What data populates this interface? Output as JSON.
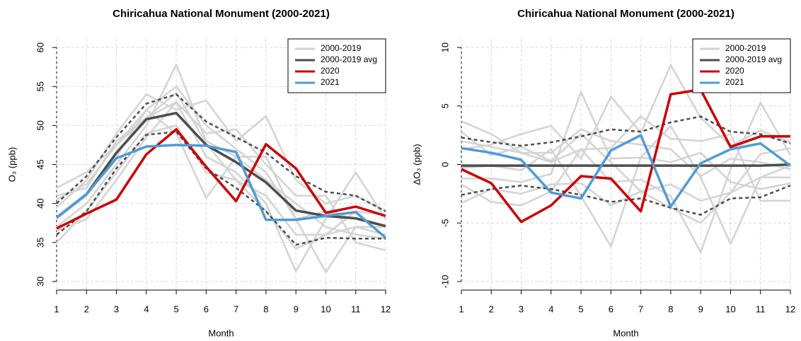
{
  "chart_data": [
    {
      "type": "line",
      "title": "Chiricahua National Monument (2000-2021)",
      "xlabel": "Month",
      "ylabel": "O₃ (ppb)",
      "x": [
        1,
        2,
        3,
        4,
        5,
        6,
        7,
        8,
        9,
        10,
        11,
        12
      ],
      "xlim": [
        1,
        12
      ],
      "xticks": [
        1,
        2,
        3,
        4,
        5,
        6,
        7,
        8,
        9,
        10,
        11,
        12
      ],
      "ylim": [
        28.9,
        61.1
      ],
      "yticks": [
        30,
        35,
        40,
        45,
        50,
        55,
        60
      ],
      "grid": true,
      "legend": "topright",
      "series": [
        {
          "name": "2000-2019",
          "color": "#d3d3d3",
          "lines": [
            [
              40.5,
              42.5,
              47.5,
              52,
              55,
              50,
              47,
              44,
              38,
              39,
              38,
              37
            ],
            [
              37,
              40,
              45,
              50,
              57.8,
              48,
              46,
              43,
              40,
              37,
              36,
              35.5
            ],
            [
              39.5,
              43,
              49,
              54,
              52,
              53.2,
              48,
              51.2,
              43,
              40,
              41,
              39
            ],
            [
              35,
              39,
              44,
              49,
              50,
              44,
              43,
              41,
              36,
              36,
              37,
              37
            ],
            [
              42,
              44,
              47.5,
              51,
              53,
              46,
              44,
              40,
              31.3,
              38,
              44,
              38
            ],
            [
              38,
              41,
              46,
              52,
              49,
              40.7,
              46,
              46,
              38,
              31.2,
              37,
              36
            ],
            [
              36.5,
              38,
              43,
              48.5,
              53,
              49,
              49.5,
              45,
              41,
              41,
              35,
              34
            ],
            [
              41,
              42,
              48,
              51,
              54.2,
              47.7,
              43,
              39,
              34.2,
              36,
              39,
              38.5
            ]
          ]
        },
        {
          "name": "2000-2019 avg",
          "color": "#4d4d4d",
          "values": [
            38.2,
            41.2,
            46.5,
            50.8,
            51.6,
            47.5,
            45.3,
            42.7,
            39.1,
            38.4,
            38.1,
            37.1
          ]
        },
        {
          "name": "2020",
          "color": "#cc0000",
          "values": [
            36.8,
            38.7,
            40.5,
            46.3,
            49.5,
            44.7,
            40.3,
            47.6,
            44.5,
            38.8,
            39.6,
            38.4
          ]
        },
        {
          "name": "2021",
          "color": "#4f9bd5",
          "values": [
            38.2,
            41.2,
            45.8,
            47.3,
            47.5,
            47.4,
            46.6,
            37.9,
            37.9,
            38.4,
            38.9,
            35.6
          ]
        },
        {
          "color": "#4d4d4d",
          "dashed": true,
          "values": [
            40,
            43.5,
            48.5,
            52.8,
            54,
            50.5,
            48.5,
            46.5,
            43.5,
            41.5,
            41,
            39
          ]
        },
        {
          "color": "#4d4d4d",
          "dashed": true,
          "values": [
            36,
            39,
            44.5,
            48.8,
            49.2,
            44.5,
            42,
            39,
            34.7,
            35.6,
            35.5,
            35.5
          ]
        }
      ]
    },
    {
      "type": "line",
      "title": "Chiricahua National Monument (2000-2021)",
      "xlabel": "Month",
      "ylabel": "ΔO₃ (ppb)",
      "x": [
        1,
        2,
        3,
        4,
        5,
        6,
        7,
        8,
        9,
        10,
        11,
        12
      ],
      "xlim": [
        1,
        12
      ],
      "xticks": [
        1,
        2,
        3,
        4,
        5,
        6,
        7,
        8,
        9,
        10,
        11,
        12
      ],
      "ylim": [
        -10.73,
        10.73
      ],
      "yticks": [
        -10,
        -5,
        0,
        5,
        10
      ],
      "grid": true,
      "legend": "topright",
      "series": [
        {
          "name": "2000-2019",
          "color": "#d3d3d3",
          "lines": [
            [
              2,
              1.5,
              1,
              1,
              3,
              2,
              1.7,
              1.3,
              -1,
              0.5,
              0.2,
              -0.4
            ],
            [
              -1.2,
              -1.2,
              -1.5,
              -0.8,
              6.2,
              0.5,
              0.6,
              0.2,
              1,
              -1.5,
              -2.1,
              -1.6
            ],
            [
              1.3,
              1.7,
              2.6,
              3.3,
              0.5,
              5.8,
              2.7,
              8.5,
              4,
              1.6,
              2.9,
              1.9
            ],
            [
              -3.3,
              -2.1,
              -2.5,
              -1.7,
              -1.6,
              -3.5,
              -2.3,
              -1.7,
              -3.1,
              -2.4,
              -1.1,
              -0.1
            ],
            [
              3.7,
              2.6,
              1,
              0.2,
              1.3,
              -1.5,
              -1.3,
              -2.7,
              -7.5,
              -0.4,
              5.3,
              0.8
            ],
            [
              -0.3,
              -0.1,
              -0.5,
              1.3,
              -2.7,
              -7,
              0.6,
              3.3,
              -1.1,
              -6.8,
              -1.1,
              -1.1
            ],
            [
              -1.7,
              -3.2,
              -3.5,
              -2.3,
              1.3,
              1.4,
              4.1,
              2.2,
              2,
              2.6,
              -3.1,
              -3.1
            ],
            [
              2.8,
              0.8,
              1.5,
              0.3,
              2.6,
              0.2,
              -2.3,
              -3.7,
              -5,
              -2.4,
              0.9,
              1.4
            ]
          ]
        },
        {
          "name": "2000-2019 avg",
          "color": "#4d4d4d",
          "values": [
            -0.1,
            -0.1,
            -0.1,
            -0.1,
            -0.1,
            -0.1,
            -0.1,
            -0.1,
            -0.1,
            -0.1,
            -0.1,
            0
          ]
        },
        {
          "name": "2020",
          "color": "#cc0000",
          "values": [
            -0.4,
            -1.6,
            -4.9,
            -3.5,
            -1,
            -1.2,
            -4,
            6,
            6.4,
            1.5,
            2.4,
            2.4
          ]
        },
        {
          "name": "2021",
          "color": "#4f9bd5",
          "values": [
            1.4,
            1,
            0.4,
            -2.4,
            -2.9,
            1.2,
            2.5,
            -3.6,
            0.1,
            1.3,
            1.8,
            -0.1
          ]
        },
        {
          "color": "#4d4d4d",
          "dashed": true,
          "values": [
            2.3,
            1.9,
            1.6,
            1.9,
            2.4,
            3,
            2.8,
            3.6,
            4.1,
            2.8,
            2.6,
            1.8
          ]
        },
        {
          "color": "#4d4d4d",
          "dashed": true,
          "values": [
            -2.6,
            -2.1,
            -1.8,
            -2.1,
            -2.6,
            -3.2,
            -2.9,
            -3.7,
            -4.3,
            -2.9,
            -2.8,
            -1.8
          ]
        }
      ]
    }
  ]
}
